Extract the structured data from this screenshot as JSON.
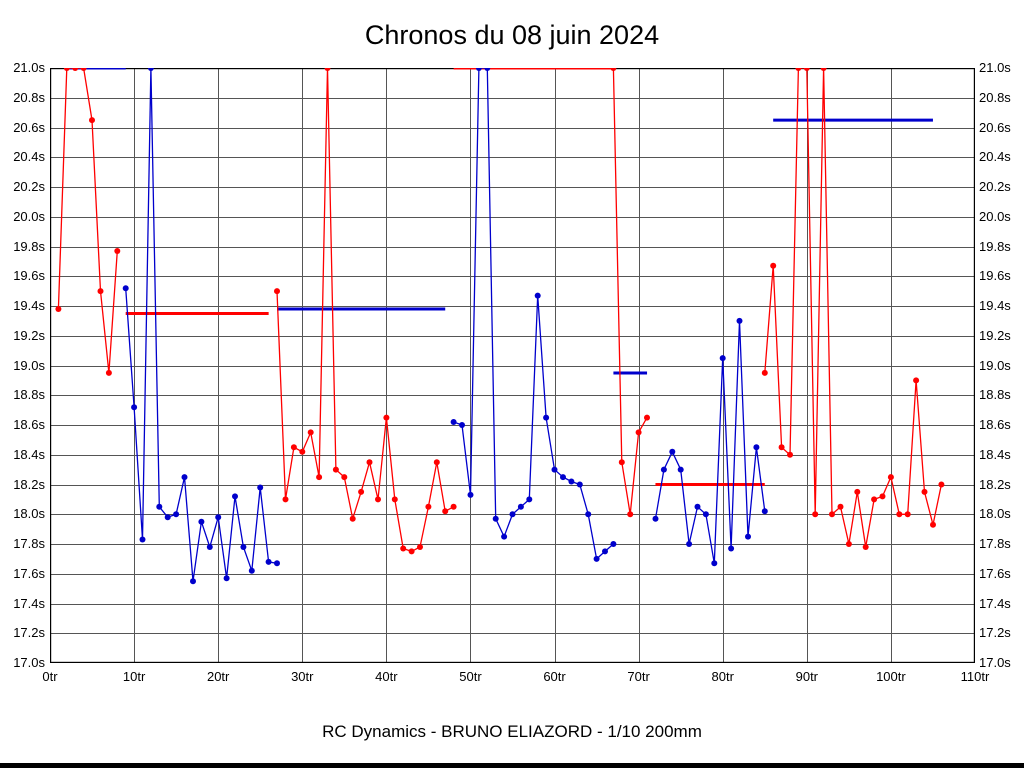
{
  "header": {
    "title": "Chronos du 08 juin 2024"
  },
  "footer": {
    "caption": "RC Dynamics - BRUNO ELIAZORD - 1/10 200mm"
  },
  "colors": {
    "red_series": "#ff0000",
    "blue_series": "#0000cc",
    "grid": "#555555",
    "frame": "#000000"
  },
  "chart_data": {
    "type": "line",
    "title": "Chronos du 08 juin 2024",
    "xlabel": "",
    "ylabel": "",
    "x_unit": "tr",
    "y_unit": "s",
    "xlim": [
      0,
      110
    ],
    "ylim": [
      17.0,
      21.0
    ],
    "x_tick_step": 10,
    "y_tick_step": 0.2,
    "grid": true,
    "y_labels_both_sides": true,
    "x_ticks": [
      "0tr",
      "10tr",
      "20tr",
      "30tr",
      "40tr",
      "50tr",
      "60tr",
      "70tr",
      "80tr",
      "90tr",
      "100tr",
      "110tr"
    ],
    "y_ticks": [
      "21.0s",
      "20.8s",
      "20.6s",
      "20.4s",
      "20.2s",
      "20.0s",
      "19.8s",
      "19.6s",
      "19.4s",
      "19.2s",
      "19.0s",
      "18.8s",
      "18.6s",
      "18.4s",
      "18.2s",
      "18.0s",
      "17.8s",
      "17.6s",
      "17.4s",
      "17.2s",
      "17.0s"
    ],
    "series": [
      {
        "name": "driver-red",
        "color": "#ff0000",
        "stints": [
          [
            [
              1,
              19.38
            ],
            [
              2,
              21
            ],
            [
              3,
              21
            ],
            [
              4,
              21
            ],
            [
              5,
              20.65
            ],
            [
              6,
              19.5
            ],
            [
              7,
              18.95
            ],
            [
              8,
              19.77
            ]
          ],
          [
            [
              27,
              19.5
            ],
            [
              28,
              18.1
            ],
            [
              29,
              18.45
            ],
            [
              30,
              18.42
            ],
            [
              31,
              18.55
            ],
            [
              32,
              18.25
            ],
            [
              33,
              21
            ],
            [
              34,
              18.3
            ],
            [
              35,
              18.25
            ],
            [
              36,
              17.97
            ],
            [
              37,
              18.15
            ],
            [
              38,
              18.35
            ],
            [
              39,
              18.1
            ],
            [
              40,
              18.65
            ],
            [
              41,
              18.1
            ],
            [
              42,
              17.77
            ],
            [
              43,
              17.75
            ],
            [
              44,
              17.78
            ],
            [
              45,
              18.05
            ],
            [
              46,
              18.35
            ],
            [
              47,
              18.02
            ],
            [
              48,
              18.05
            ]
          ],
          [
            [
              67,
              21
            ],
            [
              68,
              18.35
            ],
            [
              69,
              18.0
            ],
            [
              70,
              18.55
            ],
            [
              71,
              18.65
            ]
          ],
          [
            [
              85,
              18.95
            ],
            [
              86,
              19.67
            ],
            [
              87,
              18.45
            ],
            [
              88,
              18.4
            ],
            [
              89,
              21
            ],
            [
              90,
              21
            ],
            [
              91,
              18.0
            ],
            [
              92,
              21
            ],
            [
              93,
              18.0
            ],
            [
              94,
              18.05
            ],
            [
              95,
              17.8
            ],
            [
              96,
              18.15
            ],
            [
              97,
              17.78
            ],
            [
              98,
              18.1
            ],
            [
              99,
              18.12
            ],
            [
              100,
              18.25
            ],
            [
              101,
              18.0
            ],
            [
              102,
              18.0
            ],
            [
              103,
              18.9
            ],
            [
              104,
              18.15
            ],
            [
              105,
              17.93
            ],
            [
              106,
              18.2
            ]
          ]
        ]
      },
      {
        "name": "driver-blue",
        "color": "#0000cc",
        "stints": [
          [
            [
              9,
              19.52
            ],
            [
              10,
              18.72
            ],
            [
              11,
              17.83
            ],
            [
              12,
              21
            ],
            [
              13,
              18.05
            ],
            [
              14,
              17.98
            ],
            [
              15,
              18.0
            ],
            [
              16,
              18.25
            ],
            [
              17,
              17.55
            ],
            [
              18,
              17.95
            ],
            [
              19,
              17.78
            ],
            [
              20,
              17.98
            ],
            [
              21,
              17.57
            ],
            [
              22,
              18.12
            ],
            [
              23,
              17.78
            ],
            [
              24,
              17.62
            ],
            [
              25,
              18.18
            ],
            [
              26,
              17.68
            ],
            [
              27,
              17.67
            ]
          ],
          [
            [
              48,
              18.62
            ],
            [
              49,
              18.6
            ],
            [
              50,
              18.13
            ],
            [
              51,
              21
            ],
            [
              52,
              21
            ],
            [
              53,
              17.97
            ],
            [
              54,
              17.85
            ],
            [
              55,
              18.0
            ],
            [
              56,
              18.05
            ],
            [
              57,
              18.1
            ],
            [
              58,
              19.47
            ],
            [
              59,
              18.65
            ],
            [
              60,
              18.3
            ],
            [
              61,
              18.25
            ],
            [
              62,
              18.22
            ],
            [
              63,
              18.2
            ],
            [
              64,
              18.0
            ],
            [
              65,
              17.7
            ],
            [
              66,
              17.75
            ],
            [
              67,
              17.8
            ]
          ],
          [
            [
              72,
              17.97
            ],
            [
              73,
              18.3
            ],
            [
              74,
              18.42
            ],
            [
              75,
              18.3
            ],
            [
              76,
              17.8
            ],
            [
              77,
              18.05
            ],
            [
              78,
              18.0
            ],
            [
              79,
              17.67
            ],
            [
              80,
              19.05
            ],
            [
              81,
              17.77
            ],
            [
              82,
              19.3
            ],
            [
              83,
              17.85
            ],
            [
              84,
              18.45
            ],
            [
              85,
              18.02
            ]
          ]
        ]
      }
    ],
    "average_segments": [
      {
        "color": "#0000cc",
        "x_start": 2,
        "x_end": 9,
        "y": 21.0
      },
      {
        "color": "#ff0000",
        "x_start": 9,
        "x_end": 26,
        "y": 19.35
      },
      {
        "color": "#0000cc",
        "x_start": 27,
        "x_end": 47,
        "y": 19.38
      },
      {
        "color": "#ff0000",
        "x_start": 48,
        "x_end": 67,
        "y": 21.0
      },
      {
        "color": "#0000cc",
        "x_start": 67,
        "x_end": 71,
        "y": 18.95
      },
      {
        "color": "#ff0000",
        "x_start": 72,
        "x_end": 85,
        "y": 18.2
      },
      {
        "color": "#0000cc",
        "x_start": 86,
        "x_end": 105,
        "y": 20.65
      }
    ]
  }
}
